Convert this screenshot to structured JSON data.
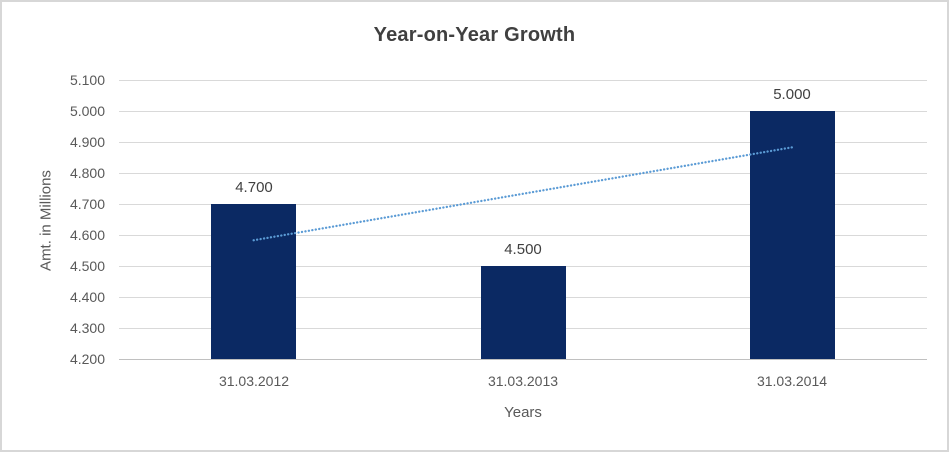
{
  "colors": {
    "bar": "#0b2963",
    "trendline": "#5b9bd5",
    "gridline": "#d9d9d9",
    "axis_line": "#c0c0c0",
    "title_text": "#404040",
    "axis_text": "#595959",
    "border": "#d7d7d7",
    "background": "#ffffff"
  },
  "chart_data": {
    "type": "bar",
    "title": "Year-on-Year Growth",
    "categories": [
      "31.03.2012",
      "31.03.2013",
      "31.03.2014"
    ],
    "values": [
      4.7,
      4.5,
      5.0
    ],
    "data_labels": [
      "4.700",
      "4.500",
      "5.000"
    ],
    "xlabel": "Years",
    "ylabel": "Amt. in Millions",
    "ylim": [
      4.2,
      5.1
    ],
    "ytick_step": 0.1,
    "ytick_labels": [
      "4.200",
      "4.300",
      "4.400",
      "4.500",
      "4.600",
      "4.700",
      "4.800",
      "4.900",
      "5.000",
      "5.100"
    ],
    "grid": true,
    "legend_position": "none",
    "trendline": {
      "type": "linear",
      "style": "dotted",
      "start_value": 4.583,
      "end_value": 4.883
    }
  }
}
